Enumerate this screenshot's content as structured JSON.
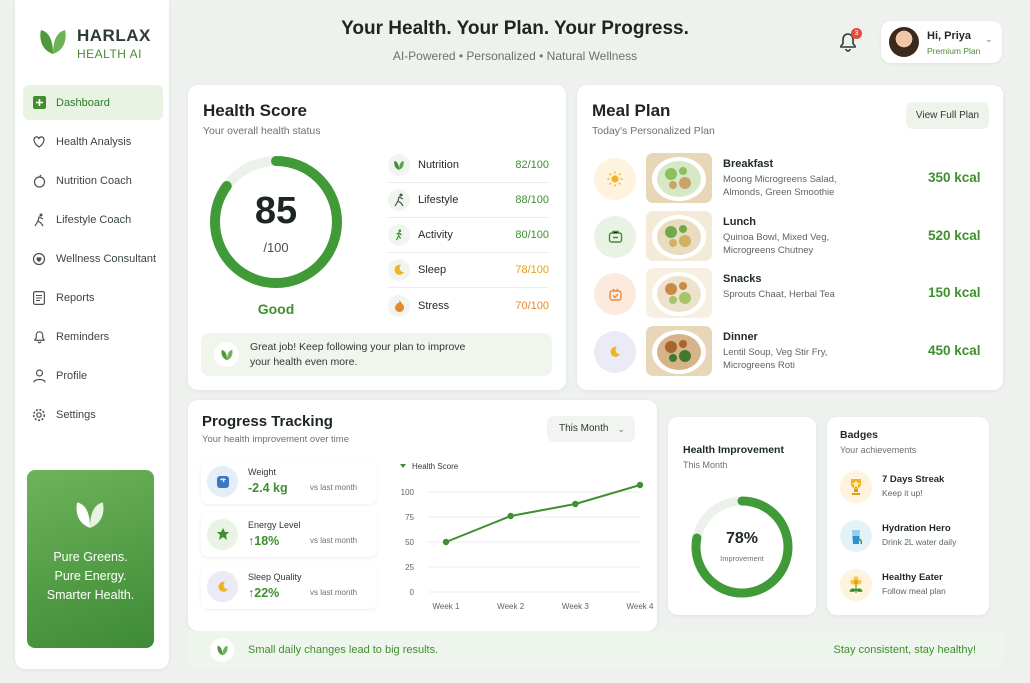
{
  "brand": {
    "name": "HARLAX",
    "sub": "HEALTH AI"
  },
  "sidebar": {
    "items": [
      {
        "label": "Dashboard",
        "icon": "dashboard-icon"
      },
      {
        "label": "Health Analysis",
        "icon": "heart-pulse-icon"
      },
      {
        "label": "Nutrition Coach",
        "icon": "apple-icon"
      },
      {
        "label": "Lifestyle Coach",
        "icon": "run-icon"
      },
      {
        "label": "Wellness Consultant",
        "icon": "user-heart-icon"
      },
      {
        "label": "Reports",
        "icon": "report-icon"
      },
      {
        "label": "Reminders",
        "icon": "bell-icon"
      },
      {
        "label": "Profile",
        "icon": "user-icon"
      },
      {
        "label": "Settings",
        "icon": "gear-icon"
      }
    ],
    "promo": {
      "line1": "Pure Greens.",
      "line2": "Pure Energy.",
      "line3": "Smarter Health."
    }
  },
  "header": {
    "title": "Your Health. Your Plan. Your Progress.",
    "subtitle": "AI-Powered • Personalized • Natural Wellness",
    "notifications": "3",
    "user_name": "Hi, Priya",
    "user_plan": "Premium Plan"
  },
  "health_score": {
    "title": "Health Score",
    "subtitle": "Your overall health status",
    "score": "85",
    "max": "/100",
    "score_value": 85,
    "status": "Good",
    "metrics": [
      {
        "label": "Nutrition",
        "value": "82/100",
        "color": "#3f8f2f",
        "icon": "leaf-icon"
      },
      {
        "label": "Lifestyle",
        "value": "88/100",
        "color": "#3f8f2f",
        "icon": "run-icon"
      },
      {
        "label": "Activity",
        "value": "80/100",
        "color": "#3f8f2f",
        "icon": "walk-icon"
      },
      {
        "label": "Sleep",
        "value": "78/100",
        "color": "#e3a21a",
        "icon": "moon-icon"
      },
      {
        "label": "Stress",
        "value": "70/100",
        "color": "#e3892c",
        "icon": "flame-icon"
      }
    ],
    "tip": "Great job! Keep following your plan to improve your health even more."
  },
  "meal_plan": {
    "title": "Meal Plan",
    "subtitle": "Today's Personalized Plan",
    "button": "View Full Plan",
    "meals": [
      {
        "name": "Breakfast",
        "desc": "Moong Microgreens Salad, Almonds, Green Smoothie",
        "kcal": "350 kcal",
        "icon": "sun-icon",
        "bg": "#fdf3de",
        "fg": "#f0b323"
      },
      {
        "name": "Lunch",
        "desc": "Quinoa Bowl, Mixed Veg, Microgreens Chutney",
        "kcal": "520 kcal",
        "icon": "lunchbox-icon",
        "bg": "#e8f3e4",
        "fg": "#3f8f2f"
      },
      {
        "name": "Snacks",
        "desc": "Sprouts Chaat, Herbal Tea",
        "kcal": "150 kcal",
        "icon": "snack-icon",
        "bg": "#fdeadf",
        "fg": "#ee8a3c"
      },
      {
        "name": "Dinner",
        "desc": "Lentil Soup, Veg Stir Fry, Microgreens Roti",
        "kcal": "450 kcal",
        "icon": "moon-icon",
        "bg": "#ebeaf7",
        "fg": "#7a74c2"
      }
    ]
  },
  "progress": {
    "title": "Progress Tracking",
    "subtitle": "Your health improvement over time",
    "period": "This Month",
    "stats": [
      {
        "label": "Weight",
        "value": "-2.4 kg",
        "sub": "vs last month",
        "icon": "scale-icon",
        "bg": "#e4eef9",
        "fg": "#3a78c2"
      },
      {
        "label": "Energy Level",
        "value": "↑18%",
        "sub": "vs last month",
        "icon": "energy-icon",
        "bg": "#e8f3e4",
        "fg": "#3f8f2f"
      },
      {
        "label": "Sleep Quality",
        "value": "↑22%",
        "sub": "vs last month",
        "icon": "moon-icon",
        "bg": "#ebeaf7",
        "fg": "#7a74c2"
      }
    ]
  },
  "chart_data": {
    "type": "line",
    "legend": "Health Score",
    "categories": [
      "Week 1",
      "Week 2",
      "Week 3",
      "Week 4"
    ],
    "values": [
      50,
      76,
      88,
      107
    ],
    "yticks": [
      "0",
      "25",
      "50",
      "75",
      "100"
    ],
    "ylim": [
      0,
      110
    ],
    "color": "#3f8f2f",
    "grid": true
  },
  "improvement": {
    "title": "Health Improvement",
    "subtitle": "This Month",
    "value": "78%",
    "value_fraction": 0.78,
    "label": "Improvement"
  },
  "badges": {
    "title": "Badges",
    "subtitle": "Your achievements",
    "items": [
      {
        "name": "7 Days Streak",
        "desc": "Keep it up!",
        "icon": "trophy-icon",
        "bg": "#fdf3de"
      },
      {
        "name": "Hydration Hero",
        "desc": "Drink 2L water daily",
        "icon": "water-icon",
        "bg": "#e4f1f9"
      },
      {
        "name": "Healthy Eater",
        "desc": "Follow meal plan",
        "icon": "flower-icon",
        "bg": "#fdf3de"
      }
    ]
  },
  "footer": {
    "left": "Small daily changes lead to big results.",
    "right": "Stay consistent, stay healthy!"
  }
}
